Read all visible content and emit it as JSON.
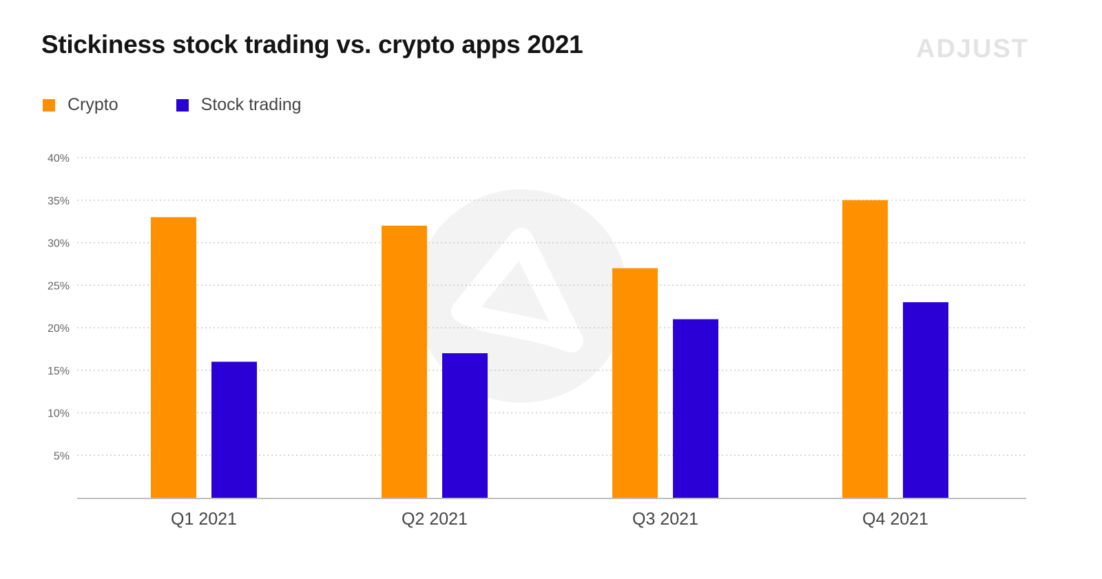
{
  "header": {
    "title": "Stickiness stock trading vs. crypto apps 2021",
    "logo_text": "ADJUST"
  },
  "colors": {
    "crypto": "#ff9100",
    "stock_trading": "#2b00d6",
    "grid": "#c8c8c8",
    "axis": "#bdbdbd",
    "tick_label": "#666666",
    "category_label": "#444444",
    "watermark": "#f3f3f3"
  },
  "chart_data": {
    "type": "bar",
    "title": "Stickiness stock trading vs. crypto apps 2021",
    "xlabel": "",
    "ylabel": "",
    "categories": [
      "Q1 2021",
      "Q2 2021",
      "Q3 2021",
      "Q4 2021"
    ],
    "series": [
      {
        "name": "Crypto",
        "values": [
          33,
          32,
          27,
          35
        ]
      },
      {
        "name": "Stock trading",
        "values": [
          16,
          17,
          21,
          23
        ]
      }
    ],
    "ylim": [
      0,
      40
    ],
    "yticks": [
      5,
      10,
      15,
      20,
      25,
      30,
      35,
      40
    ],
    "ytick_labels": [
      "5%",
      "10%",
      "15%",
      "20%",
      "25%",
      "30%",
      "35%",
      "40%"
    ],
    "grid": true,
    "grid_style": "dotted",
    "legend_position": "top-left",
    "value_unit": "%"
  }
}
